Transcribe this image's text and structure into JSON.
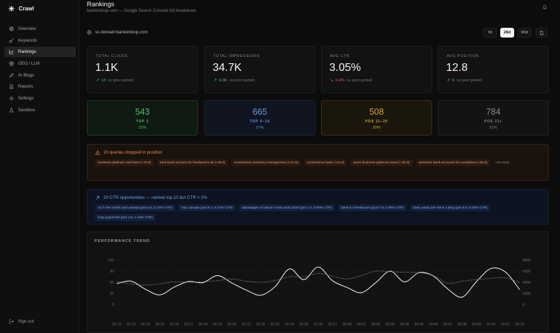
{
  "app": {
    "name": "Crawl"
  },
  "sidebar": {
    "items": [
      {
        "label": "Overview",
        "icon": "globe-icon"
      },
      {
        "label": "Keywords",
        "icon": "key-icon"
      },
      {
        "label": "Rankings",
        "icon": "trend-chart-icon",
        "active": true
      },
      {
        "label": "GEO / LLM",
        "icon": "globe-icon"
      },
      {
        "label": "AI Blogs",
        "icon": "pen-icon"
      },
      {
        "label": "Reports",
        "icon": "document-icon"
      },
      {
        "label": "Settings",
        "icon": "gear-icon"
      },
      {
        "label": "Sandbox",
        "icon": "flask-icon"
      }
    ],
    "signout": "Sign out"
  },
  "header": {
    "title": "Rankings",
    "subtitle": "bankonloop.com — Google Search Console full breakdown",
    "domain": "sc-domain:bankonloop.com",
    "ranges": [
      "7d",
      "28d",
      "90d"
    ],
    "active_range": "28d"
  },
  "stats": [
    {
      "label": "TOTAL CLICKS",
      "value": "1.1K",
      "delta": "13",
      "direction": "up",
      "suffix": "vs prev period"
    },
    {
      "label": "TOTAL IMPRESSIONS",
      "value": "34.7K",
      "delta": "4.3K",
      "direction": "up",
      "suffix": "vs prev period"
    },
    {
      "label": "AVG CTR",
      "value": "3.05%",
      "delta": "0.4%",
      "direction": "down",
      "suffix": "vs prev period"
    },
    {
      "label": "AVG POSITION",
      "value": "12.8",
      "delta": "6",
      "direction": "up",
      "suffix": "vs prev period"
    }
  ],
  "buckets": [
    {
      "value": "543",
      "label": "TOP 3",
      "pct": "22%",
      "color": "#4ac26b",
      "bg": "#0f1a13",
      "border": "#1f3a27"
    },
    {
      "value": "665",
      "label": "TOP 4–10",
      "pct": "27%",
      "color": "#6e9bd6",
      "bg": "#0f1420",
      "border": "#1b2638"
    },
    {
      "value": "508",
      "label": "POS 11–20",
      "pct": "20%",
      "color": "#d9a441",
      "bg": "#1a160c",
      "border": "#3a2f16"
    },
    {
      "value": "784",
      "label": "POS 21+",
      "pct": "31%",
      "color": "#8a8a8a",
      "bg": "#131313",
      "border": "#222222"
    }
  ],
  "dropped": {
    "title": "20 queries dropped in position",
    "chips": [
      "business platinum card fees (+74.0)",
      "best bank account for freelancers uk (+48.0)",
      "ecommerce inventory management (+41.9)",
      "ecommerce bank (+41.5)",
      "amex business platinum travel (+40.9)",
      "american bank accounts for canadians (+35.0)"
    ],
    "more": "+14 more"
  },
  "opportunities": {
    "title": "20 CTR opportunities — ranked top 10 but CTR < 2%",
    "chips": [
      "no fx fee credit card canada (pos 8.6, 0.37% CTR)",
      "loop canada (pos 8.2, 0.74% CTR)",
      "advantages of virtual credit cards 2025 (pos 1.2, 0.00% CTR)",
      "bank for freelancers (pos 7.9, 0.99% CTR)",
      "does yanal.com have a blog (pos 8.0, 0.00% CTR)",
      "loop payments (pos 4.9, 1.16% CTR)"
    ]
  },
  "chart_data": {
    "type": "line",
    "title": "PERFORMANCE TREND",
    "x": [
      "02-12",
      "02-13",
      "02-14",
      "02-15",
      "02-16",
      "02-17",
      "02-18",
      "02-19",
      "02-20",
      "02-21",
      "02-22",
      "02-23",
      "02-24",
      "02-25",
      "02-26",
      "02-27",
      "02-28",
      "03-01",
      "03-02",
      "03-03",
      "03-04",
      "03-05",
      "03-06",
      "03-07",
      "03-08",
      "03-09",
      "03-10",
      "03-11",
      "03-12"
    ],
    "left_axis": {
      "ylim": [
        0,
        120
      ],
      "ticks": [
        0,
        30,
        60,
        90,
        120
      ]
    },
    "right_axis": {
      "ylim": [
        0,
        8000
      ],
      "ticks": [
        0,
        2000,
        4000,
        6000,
        8000
      ]
    },
    "series": [
      {
        "axis": "left",
        "style": "solid",
        "values": [
          56,
          63,
          41,
          26,
          47,
          62,
          59,
          78,
          58,
          39,
          25,
          48,
          96,
          67,
          101,
          64,
          46,
          32,
          59,
          90,
          61,
          86,
          77,
          42,
          20,
          62,
          97,
          88,
          40
        ]
      },
      {
        "axis": "right",
        "style": "dashed",
        "values": [
          4100,
          3700,
          3500,
          3700,
          4100,
          4000,
          4100,
          4300,
          4600,
          4200,
          4000,
          4300,
          5000,
          5000,
          5600,
          5100,
          4600,
          5200,
          6000,
          5900,
          5800,
          5700,
          5200,
          3800,
          4200,
          4500,
          4700,
          4800,
          3900
        ]
      }
    ],
    "grid": true
  }
}
